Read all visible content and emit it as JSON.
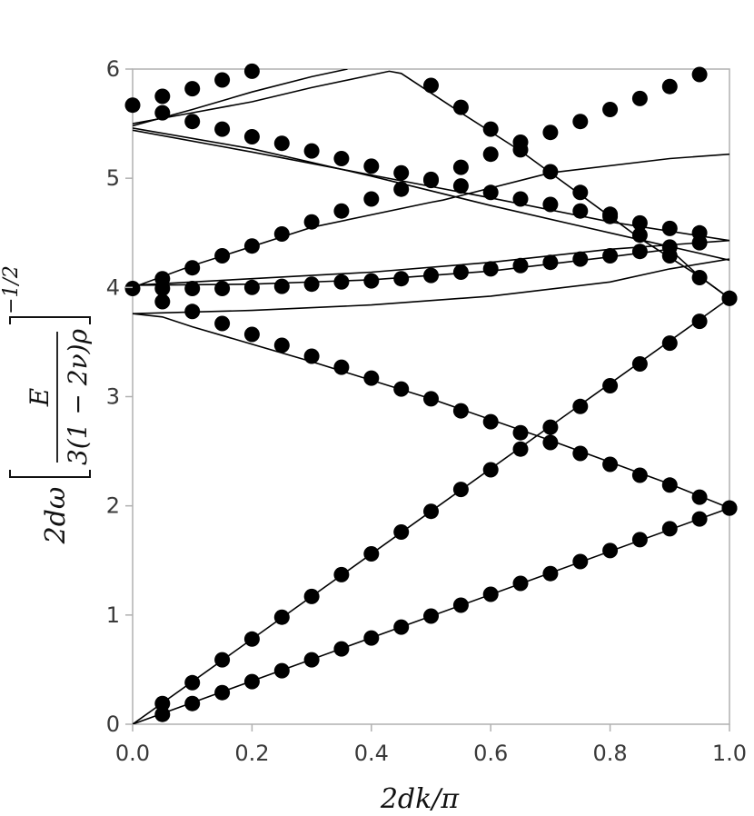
{
  "chart_data": {
    "type": "scatter",
    "title": "",
    "xlabel": "2dk/π",
    "ylabel": "2dω [E / 3(1−2ν)ρ]^(−1/2)",
    "ylabel_parts": {
      "prefix": "2dω",
      "numerator": "E",
      "denominator": "3(1 − 2ν)ρ",
      "exponent": "−1/2"
    },
    "xlim": [
      0,
      1
    ],
    "ylim": [
      0,
      6
    ],
    "xticks": [
      "0.0",
      "0.2",
      "0.4",
      "0.6",
      "0.8",
      "1.0"
    ],
    "yticks": [
      "0",
      "1",
      "2",
      "3",
      "4",
      "5",
      "6"
    ],
    "grid": false,
    "line_color": "#000000",
    "marker_color": "#000000",
    "lines": [
      {
        "x": [
          0,
          1
        ],
        "y": [
          0,
          1.98
        ]
      },
      {
        "x": [
          0,
          1
        ],
        "y": [
          0,
          3.9
        ]
      },
      {
        "x": [
          0,
          0.05,
          0.1,
          0.3,
          0.5,
          0.7,
          0.9,
          1.0
        ],
        "y": [
          3.76,
          3.73,
          3.64,
          3.32,
          2.98,
          2.6,
          2.2,
          1.98
        ]
      },
      {
        "x": [
          0,
          0.2,
          0.4,
          0.6,
          0.8,
          0.9,
          1.0
        ],
        "y": [
          3.76,
          3.79,
          3.84,
          3.92,
          4.05,
          4.17,
          4.26
        ]
      },
      {
        "x": [
          0,
          0.2,
          0.4,
          0.6,
          0.8,
          0.9,
          0.95,
          1.0
        ],
        "y": [
          4.02,
          4.03,
          4.07,
          4.15,
          4.28,
          4.35,
          4.1,
          3.9
        ]
      },
      {
        "x": [
          0,
          0.1,
          0.3,
          0.5,
          0.52,
          0.7,
          0.9,
          1.0
        ],
        "y": [
          4.0,
          4.2,
          4.55,
          4.78,
          4.8,
          5.05,
          5.18,
          5.22
        ]
      },
      {
        "x": [
          0,
          0.2,
          0.4,
          0.6,
          0.8,
          1.0
        ],
        "y": [
          5.44,
          5.24,
          5.03,
          4.82,
          4.6,
          4.43
        ]
      },
      {
        "x": [
          0,
          0.2,
          0.4,
          0.6,
          0.8,
          1.0
        ],
        "y": [
          5.46,
          5.27,
          5.02,
          4.75,
          4.5,
          4.25
        ]
      },
      {
        "x": [
          0,
          0.1,
          0.2,
          0.3,
          0.36
        ],
        "y": [
          5.48,
          5.63,
          5.79,
          5.93,
          6.0
        ]
      },
      {
        "x": [
          0,
          0.1,
          0.2,
          0.3,
          0.43,
          0.45,
          0.55,
          0.65,
          0.75,
          0.85,
          0.95,
          1.0
        ],
        "y": [
          5.5,
          5.6,
          5.7,
          5.83,
          5.98,
          5.96,
          5.6,
          5.25,
          4.85,
          4.45,
          4.1,
          3.9
        ]
      },
      {
        "x": [
          0.0,
          0.2,
          0.4,
          0.6,
          0.8,
          1.0
        ],
        "y": [
          4.02,
          4.08,
          4.14,
          4.23,
          4.35,
          4.43
        ]
      }
    ],
    "series": [
      {
        "x": [
          0.05,
          0.1,
          0.15,
          0.2,
          0.25,
          0.3,
          0.35,
          0.4,
          0.45,
          0.5,
          0.55,
          0.6,
          0.65,
          0.7,
          0.75,
          0.8,
          0.85,
          0.9,
          0.95,
          1.0
        ],
        "y": [
          0.09,
          0.19,
          0.29,
          0.39,
          0.49,
          0.59,
          0.69,
          0.79,
          0.89,
          0.99,
          1.09,
          1.19,
          1.29,
          1.38,
          1.49,
          1.59,
          1.69,
          1.79,
          1.88,
          1.98
        ]
      },
      {
        "x": [
          0.05,
          0.1,
          0.15,
          0.2,
          0.25,
          0.3,
          0.35,
          0.4,
          0.45,
          0.5,
          0.55,
          0.6,
          0.65,
          0.7,
          0.75,
          0.8,
          0.85,
          0.9,
          0.95,
          1.0
        ],
        "y": [
          0.19,
          0.38,
          0.59,
          0.78,
          0.98,
          1.17,
          1.37,
          1.56,
          1.76,
          1.95,
          2.15,
          2.33,
          2.52,
          2.72,
          2.91,
          3.1,
          3.3,
          3.49,
          3.69,
          3.9
        ]
      },
      {
        "x": [
          0.05,
          0.1,
          0.15,
          0.2,
          0.25,
          0.3,
          0.35,
          0.4,
          0.45,
          0.5,
          0.55,
          0.6,
          0.65,
          0.7,
          0.75,
          0.8,
          0.85,
          0.9,
          0.95,
          1.0
        ],
        "y": [
          3.87,
          3.78,
          3.67,
          3.57,
          3.47,
          3.37,
          3.27,
          3.17,
          3.07,
          2.98,
          2.87,
          2.77,
          2.67,
          2.58,
          2.48,
          2.38,
          2.28,
          2.19,
          2.08,
          1.98
        ]
      },
      {
        "x": [
          0.0,
          0.05,
          0.1,
          0.15,
          0.2,
          0.25,
          0.3,
          0.35,
          0.4,
          0.45,
          0.5,
          0.55,
          0.6,
          0.65,
          0.7,
          0.75,
          0.8,
          0.85,
          0.9,
          0.95
        ],
        "y": [
          3.99,
          3.99,
          3.99,
          3.99,
          4.0,
          4.01,
          4.03,
          4.05,
          4.06,
          4.08,
          4.11,
          4.14,
          4.17,
          4.2,
          4.23,
          4.26,
          4.29,
          4.33,
          4.37,
          4.41
        ]
      },
      {
        "x": [
          0.05,
          0.1,
          0.15,
          0.2,
          0.25,
          0.3,
          0.35,
          0.4,
          0.45,
          0.5,
          0.55,
          0.6,
          0.65,
          0.7,
          0.75,
          0.8,
          0.85,
          0.9,
          0.95
        ],
        "y": [
          4.08,
          4.18,
          4.29,
          4.38,
          4.49,
          4.6,
          4.7,
          4.81,
          4.9,
          4.99,
          5.1,
          5.22,
          5.33,
          5.42,
          5.52,
          5.63,
          5.73,
          5.84,
          5.95
        ]
      },
      {
        "x": [
          0.0,
          0.05,
          0.1,
          0.15,
          0.2,
          0.25,
          0.3,
          0.35,
          0.4,
          0.45,
          0.5,
          0.55,
          0.6,
          0.65,
          0.7,
          0.75,
          0.8,
          0.85,
          0.9,
          0.95
        ],
        "y": [
          5.67,
          5.6,
          5.52,
          5.45,
          5.38,
          5.32,
          5.25,
          5.18,
          5.11,
          5.05,
          4.98,
          4.93,
          4.87,
          4.81,
          4.76,
          4.7,
          4.65,
          4.59,
          4.54,
          4.5
        ]
      },
      {
        "x": [
          0.05,
          0.1,
          0.15,
          0.2
        ],
        "y": [
          5.75,
          5.82,
          5.9,
          5.98
        ]
      },
      {
        "x": [
          0.5,
          0.55,
          0.6,
          0.65,
          0.7,
          0.75,
          0.8,
          0.85,
          0.9,
          0.95,
          1.0
        ],
        "y": [
          5.85,
          5.65,
          5.45,
          5.26,
          5.06,
          4.87,
          4.67,
          4.48,
          4.29,
          4.09,
          3.9
        ]
      }
    ]
  }
}
